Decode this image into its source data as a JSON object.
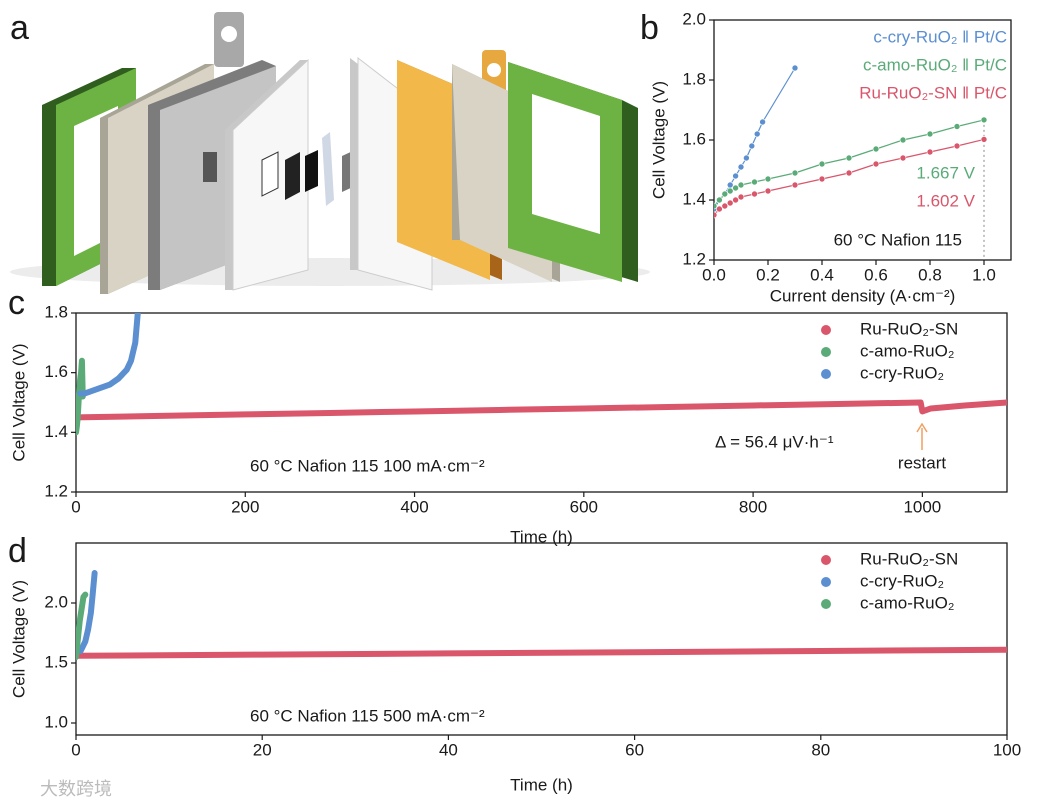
{
  "panel_labels": [
    "a",
    "b",
    "c",
    "d"
  ],
  "watermark": "大数跨境",
  "chart_data": [
    {
      "type": "line",
      "markers": true,
      "xlabel": "Current density (A·cm⁻²)",
      "ylabel": "Cell Voltage (V)",
      "xlim": [
        0,
        1.1
      ],
      "ylim": [
        1.2,
        2.0
      ],
      "xticks": [
        {
          "value": 0,
          "label": "0.0"
        },
        0.2,
        0.4,
        0.6,
        0.8,
        {
          "value": 1,
          "label": "1.0"
        }
      ],
      "yticks": [
        1.2,
        1.4,
        1.6,
        1.8,
        {
          "value": 2,
          "label": "2.0"
        }
      ],
      "legend": "upper right",
      "series": [
        {
          "name": "c-cry-RuO₂ ‖ Pt/C",
          "color": "#5b8fd0",
          "x": [
            0,
            0.02,
            0.04,
            0.06,
            0.08,
            0.1,
            0.12,
            0.14,
            0.16,
            0.18,
            0.3
          ],
          "values": [
            1.37,
            1.4,
            1.42,
            1.45,
            1.48,
            1.51,
            1.54,
            1.58,
            1.62,
            1.66,
            1.84
          ]
        },
        {
          "name": "c-amo-RuO₂ ‖ Pt/C",
          "color": "#5aab78",
          "x": [
            0,
            0.02,
            0.04,
            0.06,
            0.08,
            0.1,
            0.15,
            0.2,
            0.3,
            0.4,
            0.5,
            0.6,
            0.7,
            0.8,
            0.9,
            1
          ],
          "values": [
            1.38,
            1.4,
            1.42,
            1.43,
            1.44,
            1.45,
            1.46,
            1.47,
            1.49,
            1.52,
            1.54,
            1.57,
            1.6,
            1.62,
            1.645,
            1.667
          ]
        },
        {
          "name": "Ru-RuO₂-SN ‖ Pt/C",
          "color": "#d9566b",
          "x": [
            0,
            0.02,
            0.04,
            0.06,
            0.08,
            0.1,
            0.15,
            0.2,
            0.3,
            0.4,
            0.5,
            0.6,
            0.7,
            0.8,
            0.9,
            1
          ],
          "values": [
            1.35,
            1.37,
            1.38,
            1.39,
            1.4,
            1.41,
            1.42,
            1.43,
            1.45,
            1.47,
            1.49,
            1.52,
            1.54,
            1.56,
            1.58,
            1.602
          ]
        }
      ],
      "annotations": [
        "1.667 V",
        "1.602 V",
        "60 °C  Nafion  115"
      ]
    },
    {
      "type": "line",
      "markers": false,
      "xlabel": "Time (h)",
      "ylabel": "Cell Voltage (V)",
      "xlim": [
        0,
        1100
      ],
      "ylim": [
        1.2,
        1.8
      ],
      "xticks": [
        0,
        200,
        400,
        600,
        800,
        1000
      ],
      "yticks": [
        1.2,
        1.4,
        1.6,
        1.8
      ],
      "legend": "upper right",
      "series": [
        {
          "name": "Ru-RuO₂-SN",
          "color": "#d9566b",
          "x": [
            0,
            100,
            200,
            300,
            400,
            500,
            600,
            700,
            800,
            900,
            998,
            1000,
            1010,
            1050,
            1100
          ],
          "values": [
            1.45,
            1.455,
            1.46,
            1.465,
            1.47,
            1.475,
            1.48,
            1.485,
            1.49,
            1.495,
            1.5,
            1.47,
            1.48,
            1.49,
            1.5
          ]
        },
        {
          "name": "c-amo-RuO₂",
          "color": "#5aab78",
          "x": [
            0,
            1,
            2,
            3,
            4,
            5,
            6,
            7,
            8
          ],
          "values": [
            1.4,
            1.42,
            1.45,
            1.5,
            1.55,
            1.58,
            1.6,
            1.64,
            1.52
          ]
        },
        {
          "name": "c-cry-RuO₂",
          "color": "#5b8fd0",
          "x": [
            5,
            10,
            20,
            30,
            40,
            50,
            60,
            65,
            70,
            73
          ],
          "values": [
            1.53,
            1.53,
            1.54,
            1.55,
            1.56,
            1.58,
            1.61,
            1.64,
            1.7,
            1.8
          ]
        }
      ],
      "annotations": [
        "Δ = 56.4 μV·h⁻¹",
        "restart",
        "60 °C  Nafion  115  100 mA·cm⁻²"
      ]
    },
    {
      "type": "line",
      "markers": false,
      "xlabel": "Time (h)",
      "ylabel": "Cell Voltage (V)",
      "xlim": [
        0,
        100
      ],
      "ylim": [
        0.9,
        2.5
      ],
      "xticks": [
        0,
        20,
        40,
        60,
        80,
        100
      ],
      "yticks": [
        {
          "value": 1,
          "label": "1.0"
        },
        1.5,
        {
          "value": 2,
          "label": "2.0"
        }
      ],
      "legend": "upper right",
      "series": [
        {
          "name": "Ru-RuO₂-SN",
          "color": "#d9566b",
          "x": [
            0,
            20,
            40,
            60,
            80,
            100
          ],
          "values": [
            1.56,
            1.57,
            1.58,
            1.59,
            1.6,
            1.61
          ]
        },
        {
          "name": "c-cry-RuO₂",
          "color": "#5b8fd0",
          "x": [
            0.5,
            1,
            1.3,
            1.6,
            1.8,
            2
          ],
          "values": [
            1.6,
            1.68,
            1.78,
            1.92,
            2.08,
            2.25
          ]
        },
        {
          "name": "c-amo-RuO₂",
          "color": "#5aab78",
          "x": [
            0,
            0.2,
            0.4,
            0.6,
            0.8,
            1
          ],
          "values": [
            1.55,
            1.7,
            1.85,
            1.95,
            2.05,
            2.07
          ]
        }
      ],
      "annotations": [
        "60 °C  Nafion  115  500 mA·cm⁻²"
      ]
    }
  ]
}
